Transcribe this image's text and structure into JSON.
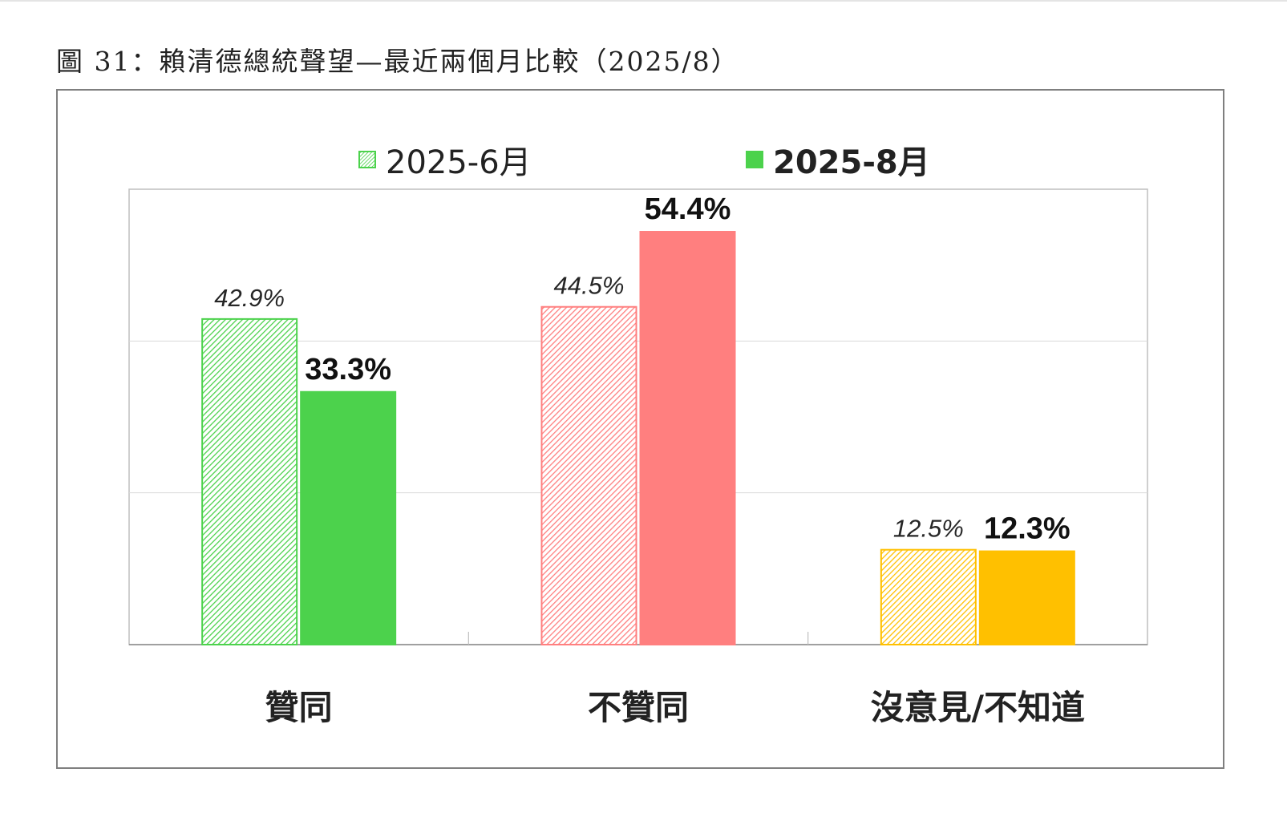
{
  "figure": {
    "title": "圖 31：賴清德總統聲望—最近兩個月比較（2025/8）"
  },
  "legend": [
    {
      "label": "2025-6月",
      "style": "hatched"
    },
    {
      "label": "2025-8月",
      "style": "solid"
    }
  ],
  "chart_data": {
    "type": "bar",
    "title": "",
    "xlabel": "",
    "ylabel": "",
    "ylim": [
      0,
      60
    ],
    "grid": true,
    "legend_position": "top",
    "categories": [
      "贊同",
      "不贊同",
      "沒意見/不知道"
    ],
    "series": [
      {
        "name": "2025-6月",
        "values": [
          42.9,
          44.5,
          12.5
        ],
        "labels": [
          "42.9%",
          "44.5%",
          "12.5%"
        ],
        "style": "hatched"
      },
      {
        "name": "2025-8月",
        "values": [
          33.3,
          54.4,
          12.3
        ],
        "labels": [
          "33.3%",
          "54.4%",
          "12.3%"
        ],
        "style": "solid"
      }
    ],
    "category_colors": [
      "#4cd24c",
      "#ff7f7f",
      "#ffc000"
    ]
  }
}
